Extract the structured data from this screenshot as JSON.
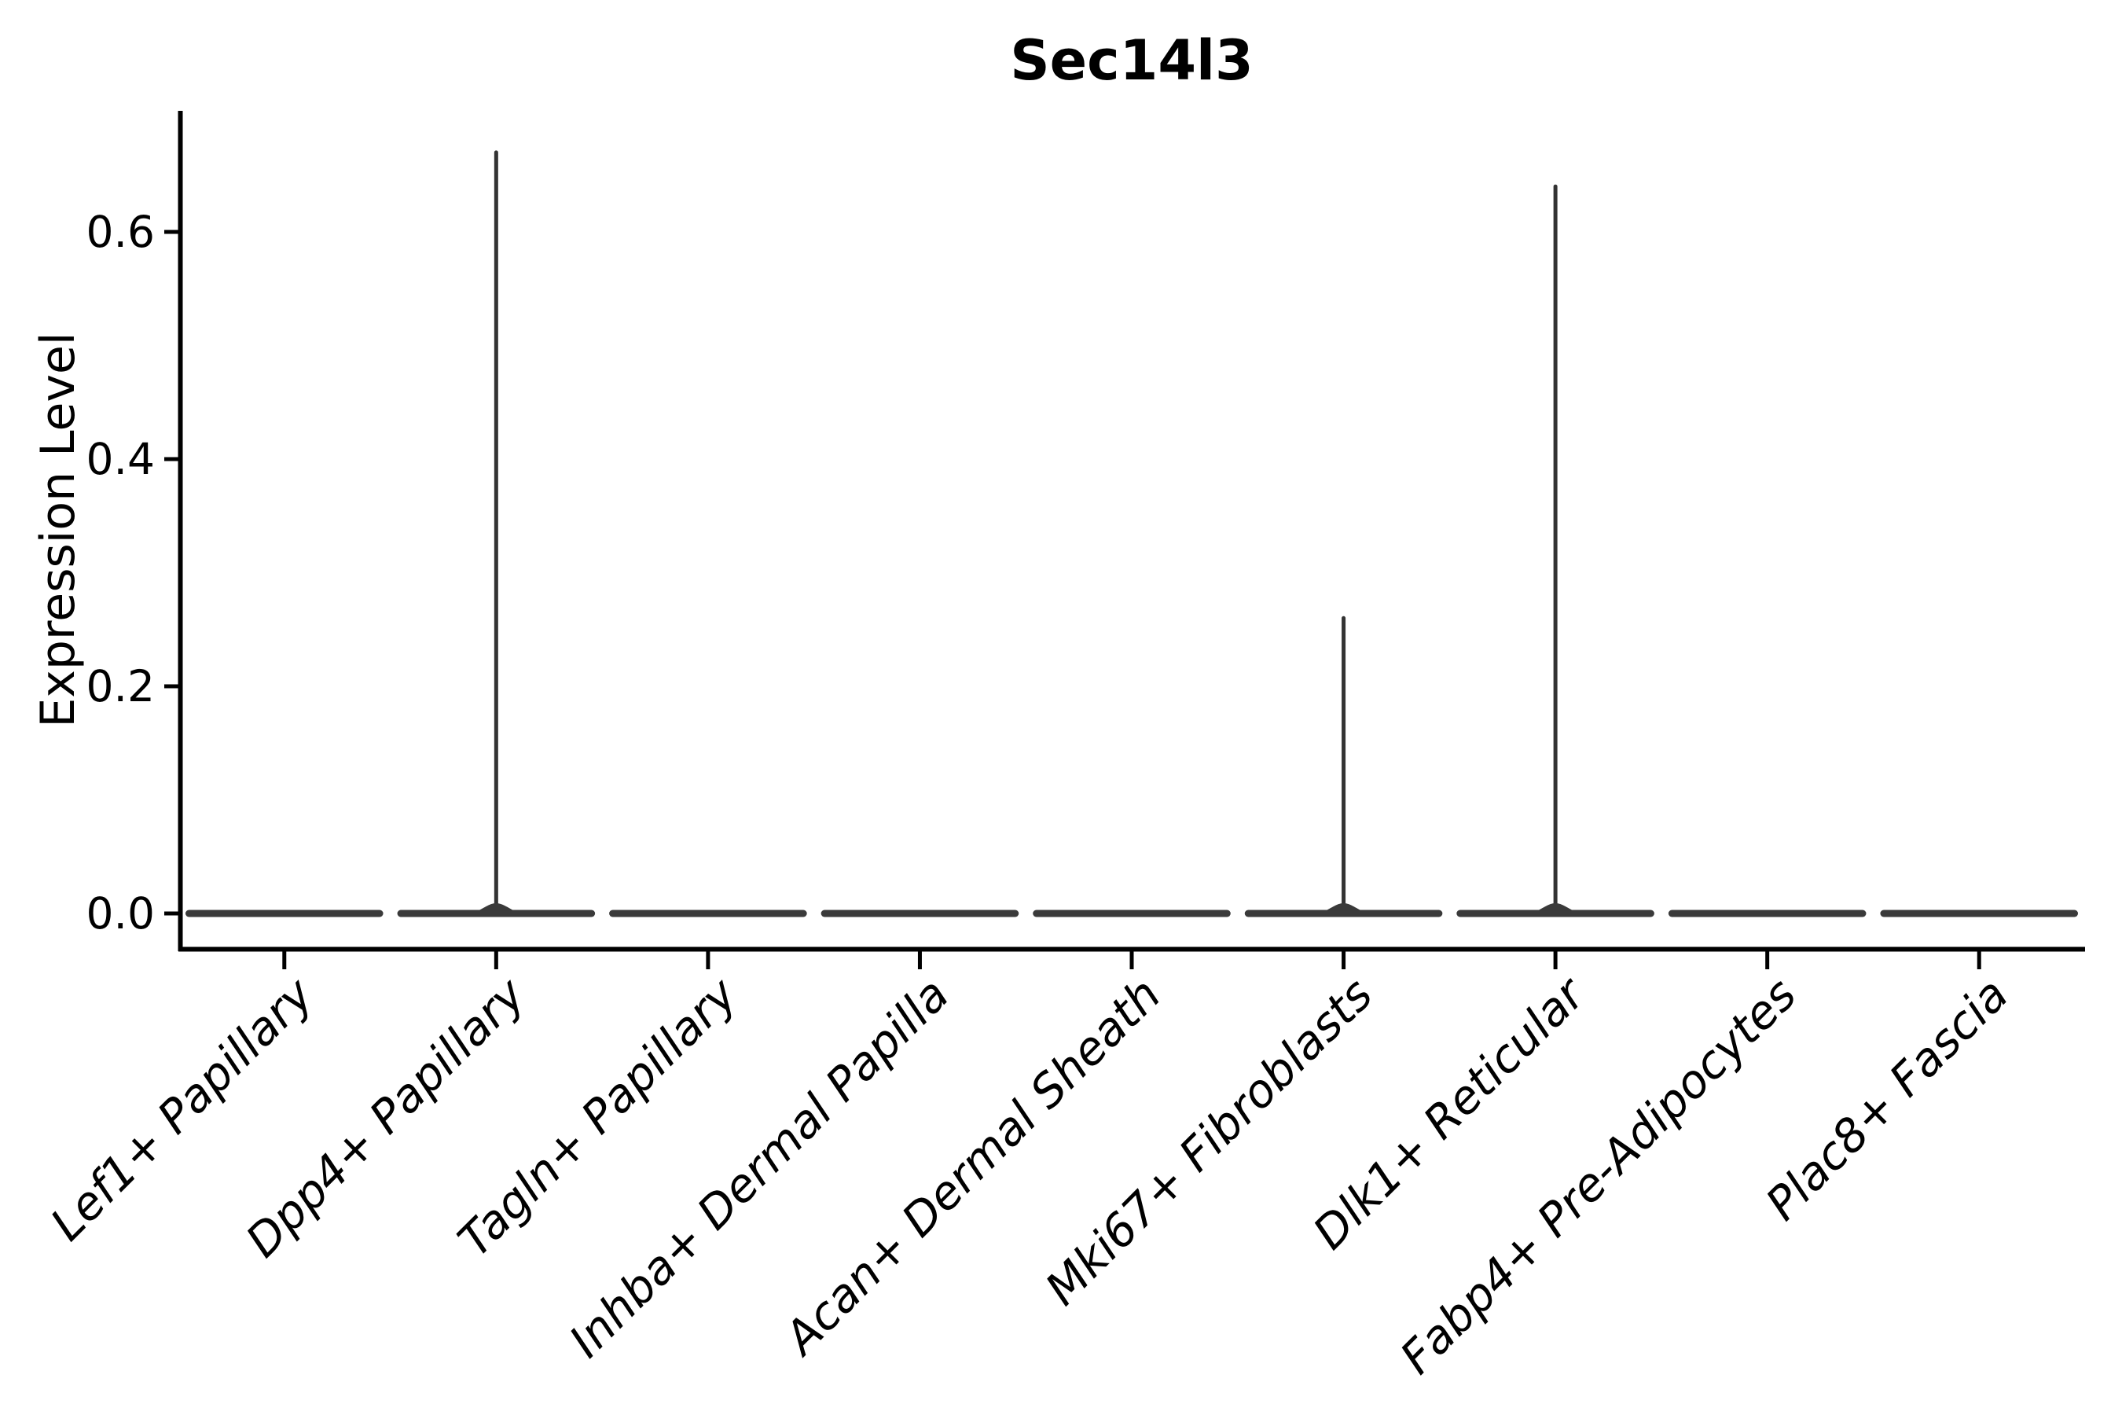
{
  "title": "Sec14l3",
  "ylabel": "Expression Level",
  "colors": {
    "background": "#ffffff",
    "axis": "#000000",
    "text": "#000000",
    "violin_body": "#3a3a3a",
    "violin_spike": "#333333"
  },
  "chart_data": {
    "type": "violin",
    "title": "Sec14l3",
    "xlabel": "",
    "ylabel": "Expression Level",
    "categories": [
      "Lef1+ Papillary",
      "Dpp4+ Papillary",
      "Tagln+ Papillary",
      "Inhba+ Dermal Papilla",
      "Acan+ Dermal Sheath",
      "Mki67+ Fibroblasts",
      "Dlk1+ Reticular",
      "Fabp4+ Pre-Adipocytes",
      "Plac8+ Fascia"
    ],
    "series": [
      {
        "name": "max_expression_per_category",
        "values": [
          0,
          0.67,
          0,
          0,
          0,
          0.26,
          0.64,
          0,
          0
        ]
      }
    ],
    "description": "All violins are collapsed to a flat horizontal line at expression 0; categories with max_expression > 0 additionally show a thin vertical density spike up to that value.",
    "yticks": [
      0.0,
      0.2,
      0.4,
      0.6
    ],
    "ytick_labels": [
      "0.0",
      "0.2",
      "0.4",
      "0.6"
    ],
    "ylim": [
      -0.034,
      0.707
    ],
    "xtick_rotation_degrees": 45,
    "xtick_style": "italic",
    "grid": false,
    "legend": "none"
  }
}
